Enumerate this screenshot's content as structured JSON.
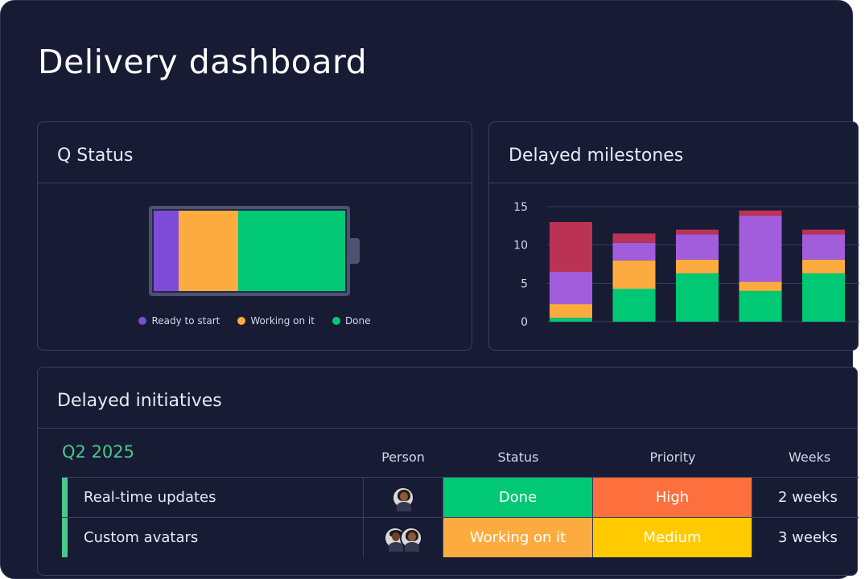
{
  "page_title": "Delivery dashboard",
  "q_status": {
    "title": "Q Status",
    "segments": [
      {
        "label": "Ready to start",
        "color": "#7e4bd6",
        "value": 13
      },
      {
        "label": "Working on it",
        "color": "#fcac3f",
        "value": 31
      },
      {
        "label": "Done",
        "color": "#00c875",
        "value": 56
      }
    ]
  },
  "milestones": {
    "title": "Delayed milestones"
  },
  "chart_data": {
    "type": "bar",
    "stacked": true,
    "categories": [
      "",
      "",
      "",
      "",
      ""
    ],
    "ylim": [
      0,
      15
    ],
    "yticks": [
      "15",
      "10",
      "5",
      "0"
    ],
    "grid": true,
    "series": [
      {
        "color": "#00c875",
        "values": [
          0.5,
          4.3,
          6.3,
          4.0,
          6.3
        ]
      },
      {
        "color": "#fcac3f",
        "values": [
          1.8,
          3.7,
          1.8,
          1.2,
          1.8
        ]
      },
      {
        "color": "#a25ddc",
        "values": [
          4.2,
          2.3,
          3.3,
          8.6,
          3.3
        ]
      },
      {
        "color": "#bb3354",
        "values": [
          6.5,
          1.2,
          0.6,
          0.7,
          0.6
        ]
      }
    ]
  },
  "initiatives": {
    "title": "Delayed initiatives",
    "group": "Q2 2025",
    "columns": {
      "person": "Person",
      "status": "Status",
      "priority": "Priority",
      "weeks": "Weeks"
    },
    "rows": [
      {
        "name": "Real-time updates",
        "avatars": [
          "woman-avatar"
        ],
        "status": "Done",
        "status_color": "#00c875",
        "priority": "High",
        "priority_color": "#fd6f3c",
        "weeks": "2 weeks"
      },
      {
        "name": "Custom avatars",
        "avatars": [
          "man-avatar",
          "woman-avatar"
        ],
        "status": "Working on it",
        "status_color": "#fcac3f",
        "priority": "Medium",
        "priority_color": "#ffcb00",
        "weeks": "3 weeks"
      }
    ]
  }
}
